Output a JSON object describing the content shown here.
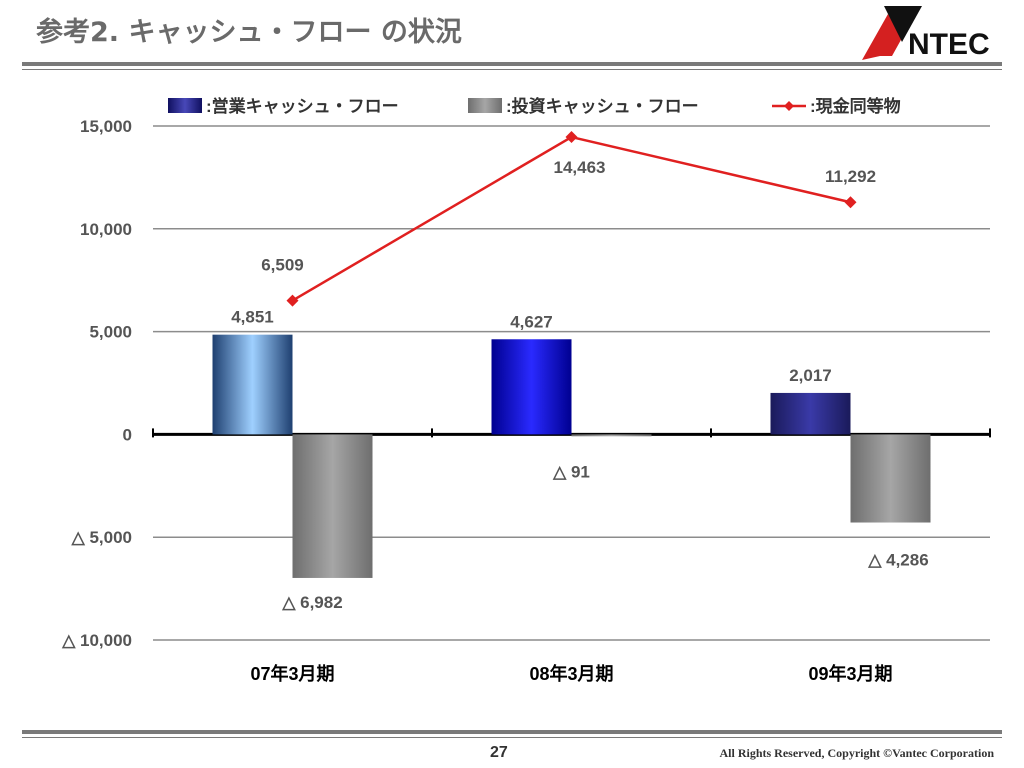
{
  "header": {
    "title": "参考2. キャッシュ・フロー の状況",
    "logo_text": "VANTEC"
  },
  "footer": {
    "page_number": "27",
    "copyright": "All Rights Reserved, Copyright ©Vantec Corporation"
  },
  "chart_data": {
    "type": "bar",
    "categories": [
      "07年3月期",
      "08年3月期",
      "09年3月期"
    ],
    "ylim": [
      -10000,
      15000
    ],
    "y_ticks": [
      15000,
      10000,
      5000,
      0,
      -5000,
      -10000
    ],
    "y_tick_labels": [
      "15,000",
      "10,000",
      "5,000",
      "0",
      "△ 5,000",
      "△ 10,000"
    ],
    "grid": true,
    "legend_position": "top",
    "series": [
      {
        "name": ":営業キャッシュ・フロー",
        "type": "bar",
        "values": [
          4851,
          4627,
          2017
        ],
        "labels": [
          "4,851",
          "4,627",
          "2,017"
        ],
        "color": "#1a1a8c"
      },
      {
        "name": ":投資キャッシュ・フロー",
        "type": "bar",
        "values": [
          -6982,
          -91,
          -4286
        ],
        "labels": [
          "△ 6,982",
          "△ 91",
          "△ 4,286"
        ],
        "color": "#8a8a8a"
      },
      {
        "name": ":現金同等物",
        "type": "line",
        "values": [
          6509,
          14463,
          11292
        ],
        "labels": [
          "6,509",
          "14,463",
          "11,292"
        ],
        "color": "#e02020"
      }
    ]
  }
}
